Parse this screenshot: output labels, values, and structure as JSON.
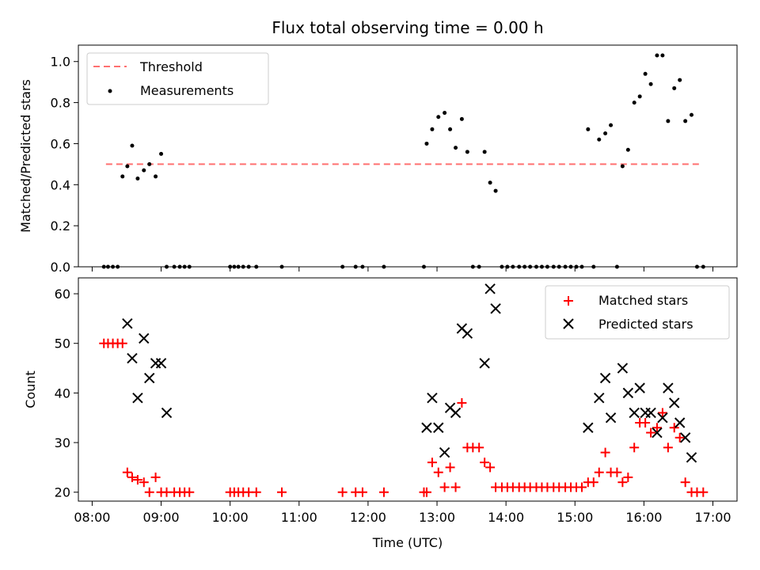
{
  "title": "Flux total observing time = 0.00 h",
  "chart_data": [
    {
      "type": "scatter",
      "ylabel": "Matched/Predicted stars",
      "xlim": [
        7.8,
        17.35
      ],
      "ylim": [
        0,
        1.08
      ],
      "xticks_hidden": true,
      "yticks": [
        0.0,
        0.2,
        0.4,
        0.6,
        0.8,
        1.0
      ],
      "ytick_labels": [
        "0.0",
        "0.2",
        "0.4",
        "0.6",
        "0.8",
        "1.0"
      ],
      "legend_position": "upper-left",
      "threshold": {
        "name": "Threshold",
        "value": 0.5,
        "x_range": [
          8.2,
          16.85
        ],
        "color": "#ff7070"
      },
      "series": [
        {
          "name": "Measurements",
          "color": "#000000",
          "x": [
            8.17,
            8.23,
            8.3,
            8.37,
            8.44,
            8.51,
            8.58,
            8.66,
            8.75,
            8.83,
            8.92,
            9.0,
            9.08,
            9.19,
            9.27,
            9.34,
            9.41,
            10.0,
            10.06,
            10.12,
            10.19,
            10.27,
            10.38,
            10.75,
            11.63,
            11.82,
            11.92,
            12.23,
            12.81,
            12.85,
            12.93,
            13.02,
            13.11,
            13.19,
            13.27,
            13.36,
            13.44,
            13.52,
            13.61,
            13.69,
            13.77,
            13.85,
            13.94,
            14.02,
            14.1,
            14.19,
            14.27,
            14.35,
            14.44,
            14.52,
            14.6,
            14.69,
            14.77,
            14.86,
            14.94,
            15.02,
            15.1,
            15.19,
            15.27,
            15.35,
            15.44,
            15.52,
            15.61,
            15.69,
            15.77,
            15.86,
            15.94,
            16.02,
            16.1,
            16.19,
            16.27,
            16.35,
            16.44,
            16.52,
            16.6,
            16.69,
            16.77,
            16.86
          ],
          "y": [
            0,
            0,
            0,
            0,
            0.44,
            0.49,
            0.59,
            0.43,
            0.47,
            0.5,
            0.44,
            0.55,
            0,
            0,
            0,
            0,
            0,
            0,
            0,
            0,
            0,
            0,
            0,
            0,
            0,
            0,
            0,
            0,
            0,
            0.6,
            0.67,
            0.73,
            0.75,
            0.67,
            0.58,
            0.72,
            0.56,
            0,
            0,
            0.56,
            0.41,
            0.37,
            0,
            0,
            0,
            0,
            0,
            0,
            0,
            0,
            0,
            0,
            0,
            0,
            0,
            0,
            0,
            0.67,
            0,
            0.62,
            0.65,
            0.69,
            0,
            0.49,
            0.57,
            0.8,
            0.83,
            0.94,
            0.89,
            1.03,
            1.03,
            0.71,
            0.87,
            0.91,
            0.71,
            0.74,
            0,
            0
          ]
        }
      ]
    },
    {
      "type": "scatter",
      "xlabel": "Time (UTC)",
      "ylabel": "Count",
      "xlim": [
        7.8,
        17.35
      ],
      "ylim": [
        18.2,
        63.2
      ],
      "xticks": [
        8,
        9,
        10,
        11,
        12,
        13,
        14,
        15,
        16,
        17
      ],
      "xtick_labels": [
        "08:00",
        "09:00",
        "10:00",
        "11:00",
        "12:00",
        "13:00",
        "14:00",
        "15:00",
        "16:00",
        "17:00"
      ],
      "yticks": [
        20,
        30,
        40,
        50,
        60
      ],
      "ytick_labels": [
        "20",
        "30",
        "40",
        "50",
        "60"
      ],
      "legend_position": "upper-right",
      "series": [
        {
          "name": "Matched stars",
          "marker": "+",
          "color": "#ff0000",
          "x": [
            8.17,
            8.23,
            8.3,
            8.37,
            8.44,
            8.51,
            8.58,
            8.66,
            8.75,
            8.83,
            8.92,
            9.0,
            9.08,
            9.19,
            9.27,
            9.34,
            9.41,
            10.0,
            10.06,
            10.12,
            10.19,
            10.27,
            10.38,
            10.75,
            11.63,
            11.82,
            11.92,
            12.23,
            12.81,
            12.85,
            12.93,
            13.02,
            13.11,
            13.19,
            13.27,
            13.36,
            13.44,
            13.52,
            13.61,
            13.69,
            13.77,
            13.85,
            13.94,
            14.02,
            14.1,
            14.19,
            14.27,
            14.35,
            14.44,
            14.52,
            14.6,
            14.69,
            14.77,
            14.86,
            14.94,
            15.02,
            15.1,
            15.19,
            15.27,
            15.35,
            15.44,
            15.52,
            15.61,
            15.69,
            15.77,
            15.86,
            15.94,
            16.02,
            16.1,
            16.19,
            16.27,
            16.35,
            16.44,
            16.52,
            16.6,
            16.69,
            16.77,
            16.86
          ],
          "y": [
            50,
            50,
            50,
            50,
            50,
            24,
            23,
            22.5,
            22,
            20,
            23,
            20,
            20,
            20,
            20,
            20,
            20,
            20,
            20,
            20,
            20,
            20,
            20,
            20,
            20,
            20,
            20,
            20,
            20,
            20,
            26,
            24,
            21,
            25,
            21,
            38,
            29,
            29,
            29,
            26,
            25,
            21,
            21,
            21,
            21,
            21,
            21,
            21,
            21,
            21,
            21,
            21,
            21,
            21,
            21,
            21,
            21,
            22,
            22,
            24,
            28,
            24,
            24,
            22,
            23,
            29,
            34,
            34,
            32,
            33,
            36,
            29,
            33,
            31,
            22,
            20,
            20,
            20
          ]
        },
        {
          "name": "Predicted stars",
          "marker": "x",
          "color": "#000000",
          "x": [
            8.51,
            8.58,
            8.66,
            8.75,
            8.83,
            8.92,
            9.0,
            9.08,
            12.85,
            12.93,
            13.02,
            13.11,
            13.19,
            13.27,
            13.36,
            13.44,
            13.69,
            13.77,
            13.85,
            15.19,
            15.35,
            15.44,
            15.52,
            15.69,
            15.77,
            15.86,
            15.94,
            16.02,
            16.1,
            16.19,
            16.27,
            16.35,
            16.44,
            16.52,
            16.6,
            16.69
          ],
          "y": [
            54,
            47,
            39,
            51,
            43,
            46,
            46,
            36,
            33,
            39,
            33,
            28,
            37,
            36,
            53,
            52,
            46,
            61,
            57,
            33,
            39,
            43,
            35,
            45,
            40,
            36,
            41,
            36,
            36,
            32,
            35,
            41,
            38,
            34,
            31,
            27
          ]
        }
      ]
    }
  ]
}
